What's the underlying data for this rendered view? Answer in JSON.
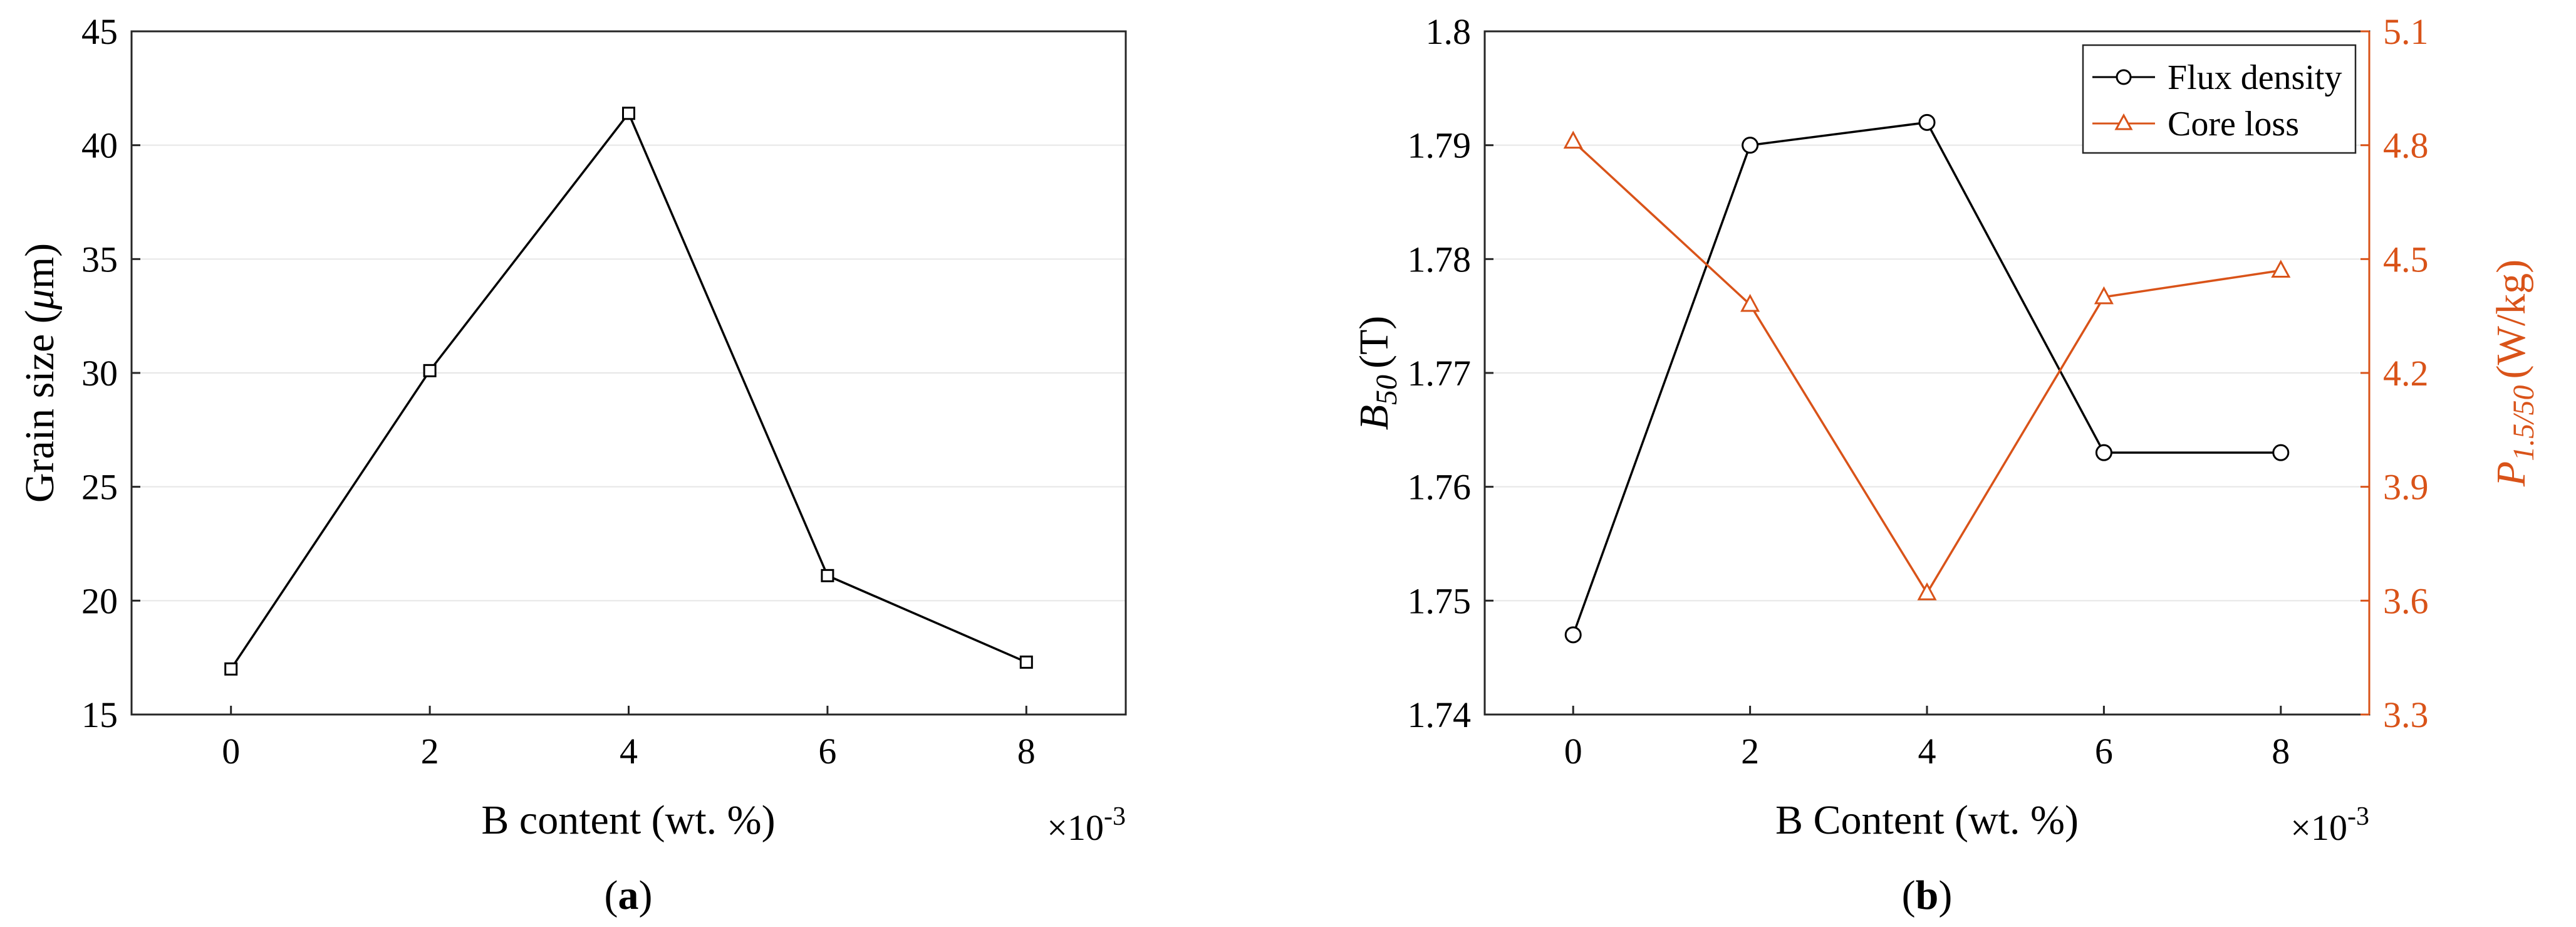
{
  "chart_data": [
    {
      "type": "line",
      "panel_label": "a",
      "x": [
        0,
        2,
        4,
        6,
        8
      ],
      "series": [
        {
          "values": [
            17.0,
            30.1,
            41.4,
            21.1,
            17.3
          ],
          "color": "#000000",
          "marker": "square"
        }
      ],
      "xlabel": "B content (wt. %)",
      "ylabel_parts": {
        "text": "Grain size",
        "italic_symbol": "μ",
        "unit_rest": "m"
      },
      "x_ticks": [
        "0",
        "2",
        "4",
        "6",
        "8"
      ],
      "x_multiplier": "×10",
      "x_multiplier_exp": "-3",
      "y_ticks": [
        "15",
        "20",
        "25",
        "30",
        "35",
        "40",
        "45"
      ],
      "xlim": [
        -1,
        9
      ],
      "ylim": [
        15,
        45
      ],
      "grid": true
    },
    {
      "type": "line",
      "panel_label": "b",
      "x": [
        0,
        2,
        4,
        6,
        8
      ],
      "series": [
        {
          "name": "Flux density",
          "axis": "left",
          "values": [
            1.747,
            1.79,
            1.792,
            1.763,
            1.763
          ],
          "color": "#000000",
          "marker": "circle"
        },
        {
          "name": "Core loss",
          "axis": "right",
          "values": [
            4.81,
            4.38,
            3.62,
            4.4,
            4.47
          ],
          "color": "#d95319",
          "marker": "triangle"
        }
      ],
      "xlabel": "B Content (wt. %)",
      "ylabel_left_parts": {
        "symbol": "B",
        "sub": "50",
        "unit": "(T)"
      },
      "ylabel_right_parts": {
        "symbol": "P",
        "sub": "1.5/50",
        "unit": "(W/kg)"
      },
      "x_ticks": [
        "0",
        "2",
        "4",
        "6",
        "8"
      ],
      "x_multiplier": "×10",
      "x_multiplier_exp": "-3",
      "y_left_ticks": [
        "1.74",
        "1.75",
        "1.76",
        "1.77",
        "1.78",
        "1.79",
        "1.8"
      ],
      "y_right_ticks": [
        "3.3",
        "3.6",
        "3.9",
        "4.2",
        "4.5",
        "4.8",
        "5.1"
      ],
      "xlim": [
        -1,
        9
      ],
      "ylim_left": [
        1.74,
        1.8
      ],
      "ylim_right": [
        3.3,
        5.1
      ],
      "grid": true,
      "legend_position": "top-right"
    }
  ]
}
